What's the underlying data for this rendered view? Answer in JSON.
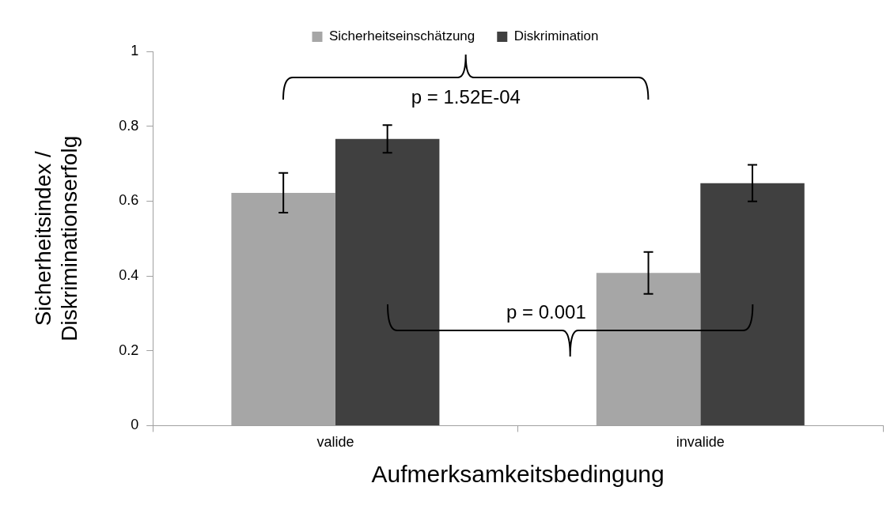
{
  "chart_data": {
    "type": "bar",
    "xlabel": "Aufmerksamkeitsbedingung",
    "ylabel": "Sicherheitsindex / Diskriminationserfolg",
    "categories": [
      "valide",
      "invalide"
    ],
    "series": [
      {
        "name": "Sicherheitseinschätzung",
        "color": "#a6a6a6",
        "values": [
          0.622,
          0.408
        ],
        "errors": [
          0.053,
          0.056
        ]
      },
      {
        "name": "Diskrimination",
        "color": "#404040",
        "values": [
          0.766,
          0.648
        ],
        "errors": [
          0.037,
          0.049
        ]
      }
    ],
    "ylim": [
      0,
      1
    ],
    "yticks": [
      0,
      0.2,
      0.4,
      0.6,
      0.8,
      1
    ],
    "grid": false,
    "legend": "top",
    "annotations": [
      "p = 1.52E-04",
      "p = 0.001"
    ]
  }
}
